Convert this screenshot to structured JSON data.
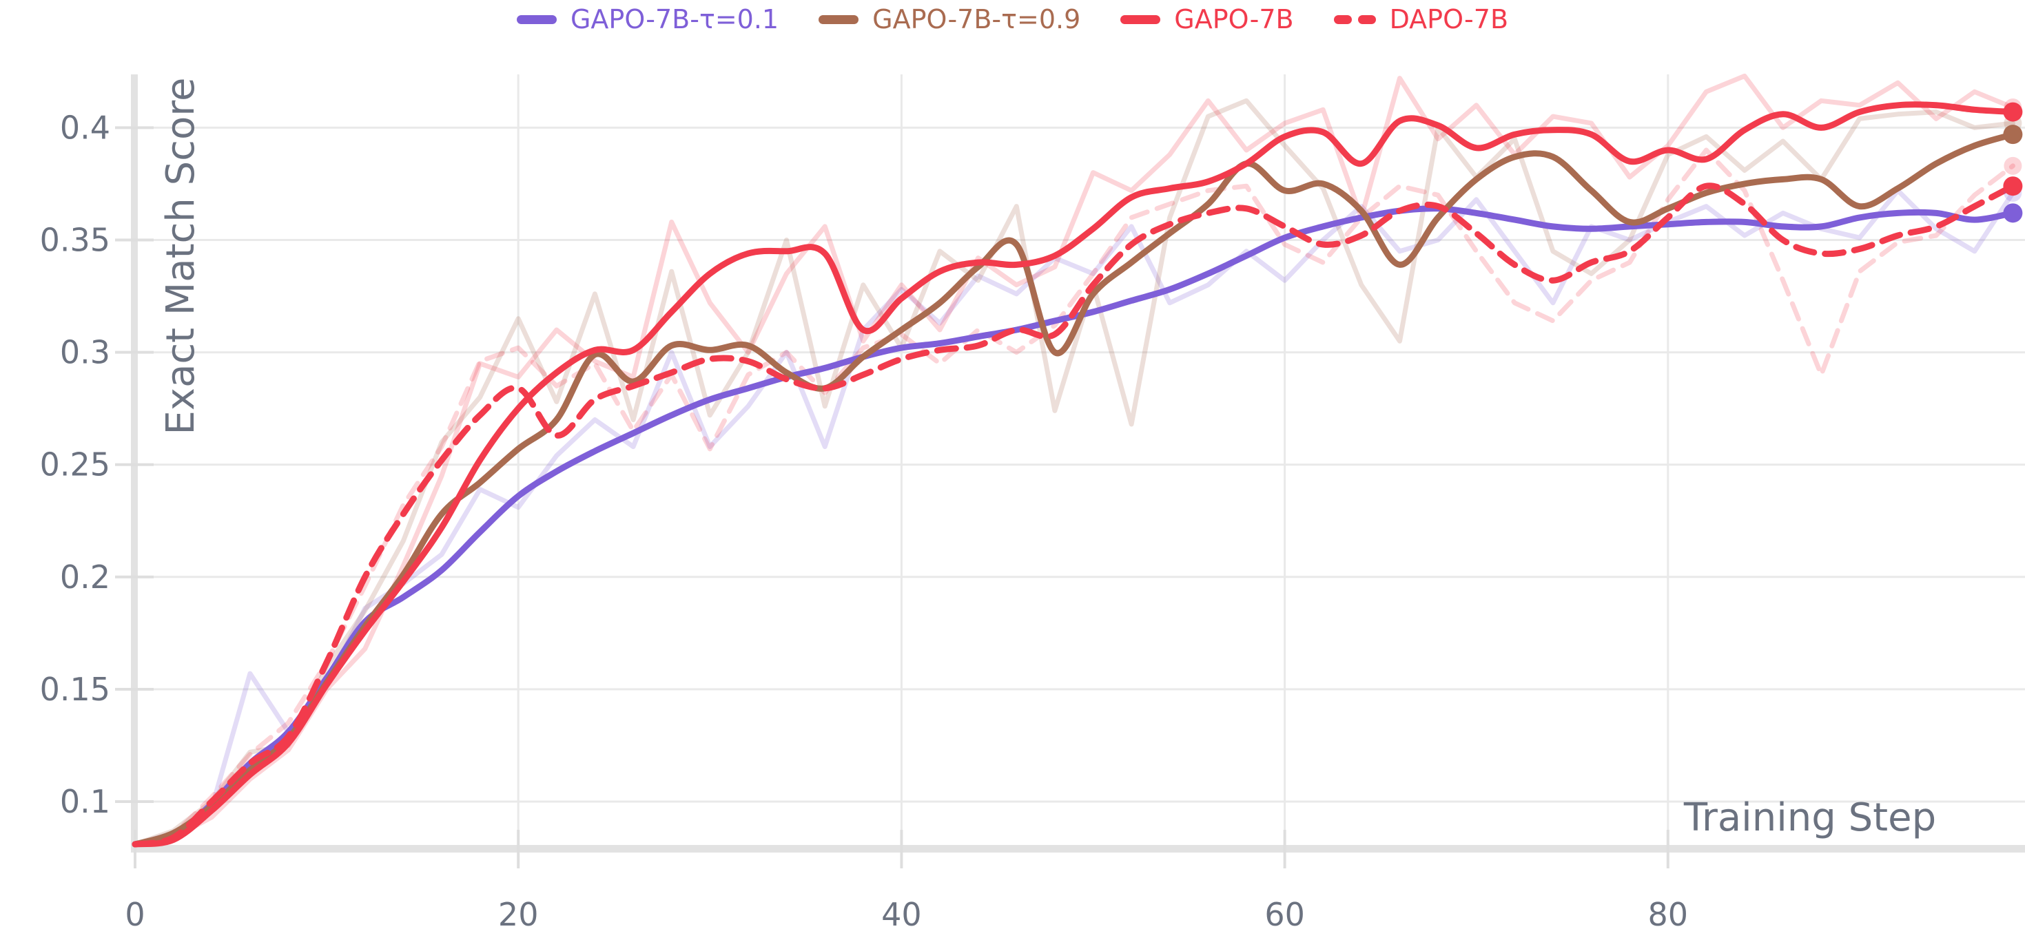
{
  "legend": {
    "items": [
      {
        "id": "gapo-7b-tau-01",
        "label": "GAPO-7B-τ=0.1",
        "color": "#7e5fd8",
        "dashed": false
      },
      {
        "id": "gapo-7b-tau-09",
        "label": "GAPO-7B-τ=0.9",
        "color": "#a96b50",
        "dashed": false
      },
      {
        "id": "gapo-7b",
        "label": "GAPO-7B",
        "color": "#f23b4c",
        "dashed": false
      },
      {
        "id": "dapo-7b",
        "label": "DAPO-7B",
        "color": "#f23b4c",
        "dashed": true
      }
    ]
  },
  "colors": {
    "purple": "#7e5fd8",
    "brown": "#a96b50",
    "red": "#f23b4c",
    "grid": "#e9e9e9",
    "spine": "#e2e2e2",
    "tick": "#dedede",
    "text": "#6b7280",
    "raw_opacity": 0.22
  },
  "chart_data": {
    "type": "line",
    "title": "",
    "xlabel": "Training Step",
    "ylabel": "Exact Match Score",
    "xlim": [
      0,
      98.6
    ],
    "ylim": [
      0.079,
      0.424
    ],
    "grid": true,
    "legend_position": "top-center",
    "xticks": [
      {
        "v": 0,
        "label": "0"
      },
      {
        "v": 20,
        "label": "20"
      },
      {
        "v": 40,
        "label": "40"
      },
      {
        "v": 60,
        "label": "60"
      },
      {
        "v": 80,
        "label": "80"
      }
    ],
    "yticks": [
      {
        "v": 0.1,
        "label": "0.1"
      },
      {
        "v": 0.15,
        "label": "0.15"
      },
      {
        "v": 0.2,
        "label": "0.2"
      },
      {
        "v": 0.25,
        "label": "0.25"
      },
      {
        "v": 0.3,
        "label": "0.3"
      },
      {
        "v": 0.35,
        "label": "0.35"
      },
      {
        "v": 0.4,
        "label": "0.4"
      }
    ],
    "steps": [
      0,
      2,
      4,
      6,
      8,
      10,
      12,
      14,
      16,
      18,
      20,
      22,
      24,
      26,
      28,
      30,
      32,
      34,
      36,
      38,
      40,
      42,
      44,
      46,
      48,
      50,
      52,
      54,
      56,
      58,
      60,
      62,
      64,
      66,
      68,
      70,
      72,
      74,
      76,
      78,
      80,
      82,
      84,
      86,
      88,
      90,
      92,
      94,
      96,
      98
    ],
    "series": [
      {
        "name": "GAPO-7B-τ=0.1 (raw)",
        "color": "#7e5fd8",
        "style": "solid",
        "kind": "raw",
        "values": [
          0.081,
          0.086,
          0.097,
          0.157,
          0.131,
          0.152,
          0.186,
          0.197,
          0.21,
          0.239,
          0.231,
          0.254,
          0.27,
          0.258,
          0.3,
          0.258,
          0.276,
          0.3,
          0.258,
          0.31,
          0.328,
          0.313,
          0.334,
          0.326,
          0.342,
          0.335,
          0.356,
          0.322,
          0.33,
          0.345,
          0.332,
          0.35,
          0.365,
          0.345,
          0.35,
          0.368,
          0.345,
          0.322,
          0.356,
          0.35,
          0.358,
          0.365,
          0.352,
          0.362,
          0.355,
          0.351,
          0.372,
          0.355,
          0.345,
          0.371
        ]
      },
      {
        "name": "GAPO-7B-τ=0.9 (raw)",
        "color": "#a96b50",
        "style": "solid",
        "kind": "raw",
        "values": [
          0.081,
          0.087,
          0.1,
          0.122,
          0.125,
          0.16,
          0.185,
          0.216,
          0.26,
          0.28,
          0.315,
          0.278,
          0.326,
          0.27,
          0.336,
          0.272,
          0.3,
          0.35,
          0.276,
          0.33,
          0.302,
          0.345,
          0.332,
          0.365,
          0.274,
          0.33,
          0.268,
          0.36,
          0.405,
          0.412,
          0.392,
          0.373,
          0.33,
          0.305,
          0.4,
          0.378,
          0.395,
          0.345,
          0.335,
          0.35,
          0.388,
          0.396,
          0.381,
          0.394,
          0.377,
          0.404,
          0.406,
          0.407,
          0.4,
          0.402
        ]
      },
      {
        "name": "GAPO-7B (raw)",
        "color": "#f23b4c",
        "style": "solid",
        "kind": "raw",
        "values": [
          0.081,
          0.084,
          0.093,
          0.11,
          0.123,
          0.15,
          0.168,
          0.205,
          0.245,
          0.295,
          0.289,
          0.31,
          0.296,
          0.289,
          0.358,
          0.322,
          0.3,
          0.335,
          0.356,
          0.305,
          0.33,
          0.31,
          0.342,
          0.33,
          0.338,
          0.38,
          0.372,
          0.388,
          0.412,
          0.39,
          0.402,
          0.408,
          0.36,
          0.422,
          0.395,
          0.41,
          0.388,
          0.405,
          0.402,
          0.378,
          0.392,
          0.416,
          0.423,
          0.4,
          0.412,
          0.41,
          0.42,
          0.404,
          0.416,
          0.409
        ]
      },
      {
        "name": "DAPO-7B (raw)",
        "color": "#f23b4c",
        "style": "dashed",
        "kind": "raw",
        "values": [
          0.081,
          0.085,
          0.102,
          0.121,
          0.135,
          0.162,
          0.196,
          0.232,
          0.258,
          0.296,
          0.302,
          0.285,
          0.295,
          0.265,
          0.29,
          0.257,
          0.29,
          0.3,
          0.282,
          0.302,
          0.308,
          0.295,
          0.31,
          0.3,
          0.312,
          0.335,
          0.36,
          0.366,
          0.372,
          0.374,
          0.348,
          0.34,
          0.36,
          0.374,
          0.37,
          0.345,
          0.322,
          0.314,
          0.332,
          0.34,
          0.368,
          0.39,
          0.372,
          0.332,
          0.29,
          0.336,
          0.349,
          0.352,
          0.37,
          0.383
        ]
      },
      {
        "name": "GAPO-7B-τ=0.1",
        "color": "#7e5fd8",
        "style": "solid",
        "kind": "smoothed",
        "values": [
          0.081,
          0.085,
          0.099,
          0.117,
          0.131,
          0.155,
          0.18,
          0.191,
          0.203,
          0.22,
          0.236,
          0.247,
          0.256,
          0.264,
          0.272,
          0.279,
          0.284,
          0.289,
          0.293,
          0.298,
          0.302,
          0.304,
          0.307,
          0.31,
          0.314,
          0.318,
          0.323,
          0.328,
          0.335,
          0.343,
          0.351,
          0.356,
          0.36,
          0.363,
          0.364,
          0.362,
          0.359,
          0.356,
          0.355,
          0.356,
          0.357,
          0.358,
          0.358,
          0.356,
          0.356,
          0.36,
          0.362,
          0.362,
          0.359,
          0.362
        ]
      },
      {
        "name": "GAPO-7B-τ=0.9",
        "color": "#a96b50",
        "style": "solid",
        "kind": "smoothed",
        "values": [
          0.081,
          0.086,
          0.098,
          0.114,
          0.128,
          0.153,
          0.178,
          0.201,
          0.228,
          0.242,
          0.257,
          0.27,
          0.299,
          0.287,
          0.303,
          0.301,
          0.303,
          0.291,
          0.284,
          0.298,
          0.31,
          0.322,
          0.338,
          0.348,
          0.3,
          0.326,
          0.34,
          0.353,
          0.366,
          0.384,
          0.372,
          0.375,
          0.363,
          0.339,
          0.36,
          0.377,
          0.387,
          0.387,
          0.372,
          0.358,
          0.364,
          0.371,
          0.375,
          0.377,
          0.377,
          0.365,
          0.373,
          0.384,
          0.392,
          0.397
        ]
      },
      {
        "name": "GAPO-7B",
        "color": "#f23b4c",
        "style": "solid",
        "kind": "smoothed",
        "values": [
          0.081,
          0.083,
          0.096,
          0.112,
          0.126,
          0.152,
          0.176,
          0.198,
          0.222,
          0.252,
          0.275,
          0.291,
          0.301,
          0.301,
          0.318,
          0.335,
          0.344,
          0.345,
          0.344,
          0.31,
          0.324,
          0.336,
          0.34,
          0.339,
          0.343,
          0.355,
          0.369,
          0.373,
          0.376,
          0.384,
          0.396,
          0.398,
          0.384,
          0.403,
          0.401,
          0.391,
          0.397,
          0.399,
          0.397,
          0.385,
          0.39,
          0.386,
          0.399,
          0.406,
          0.4,
          0.407,
          0.41,
          0.41,
          0.408,
          0.407
        ]
      },
      {
        "name": "DAPO-7B",
        "color": "#f23b4c",
        "style": "dashed",
        "kind": "smoothed",
        "values": [
          0.081,
          0.084,
          0.1,
          0.117,
          0.129,
          0.162,
          0.2,
          0.228,
          0.252,
          0.272,
          0.284,
          0.263,
          0.279,
          0.285,
          0.291,
          0.297,
          0.296,
          0.288,
          0.284,
          0.29,
          0.297,
          0.301,
          0.303,
          0.31,
          0.308,
          0.33,
          0.348,
          0.357,
          0.362,
          0.364,
          0.356,
          0.348,
          0.352,
          0.363,
          0.365,
          0.353,
          0.339,
          0.332,
          0.34,
          0.345,
          0.36,
          0.374,
          0.366,
          0.35,
          0.344,
          0.346,
          0.352,
          0.356,
          0.365,
          0.374
        ]
      }
    ],
    "end_markers": {
      "smoothed": [
        {
          "series": "GAPO-7B",
          "value": 0.407
        },
        {
          "series": "GAPO-7B-τ=0.9",
          "value": 0.397
        },
        {
          "series": "DAPO-7B",
          "value": 0.374
        },
        {
          "series": "GAPO-7B-τ=0.1",
          "value": 0.362
        }
      ],
      "raw": [
        {
          "series": "GAPO-7B (raw)",
          "value": 0.409
        },
        {
          "series": "GAPO-7B-τ=0.9 (raw)",
          "value": 0.402
        },
        {
          "series": "DAPO-7B (raw)",
          "value": 0.383
        },
        {
          "series": "GAPO-7B-τ=0.1 (raw)",
          "value": 0.371
        }
      ]
    }
  }
}
